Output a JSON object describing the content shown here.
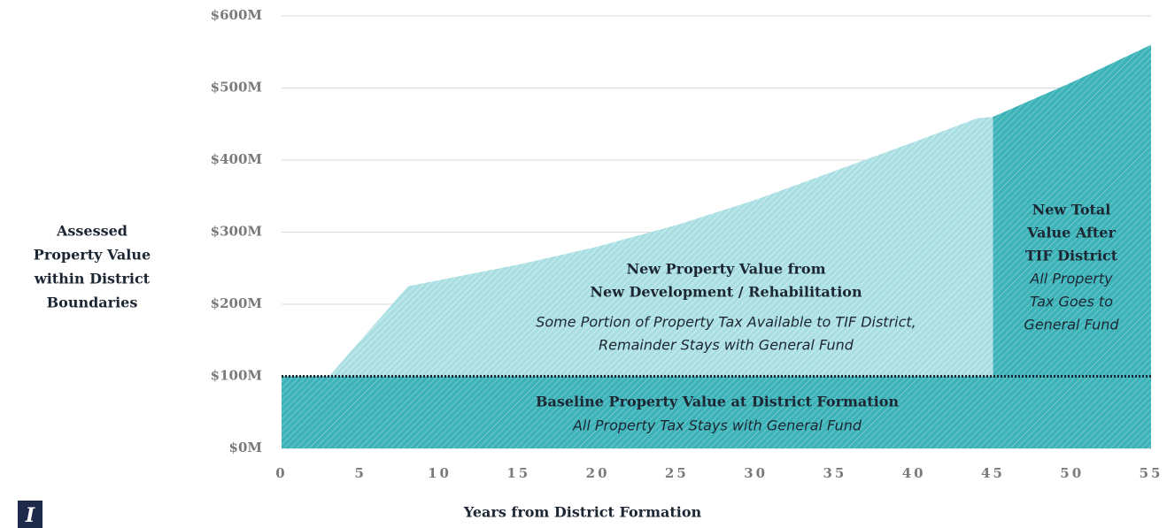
{
  "chart_data": {
    "type": "area",
    "ylabel": [
      "Assessed",
      "Property Value",
      "within District",
      "Boundaries"
    ],
    "xlabel": "Years from District Formation",
    "xlim": [
      0,
      55
    ],
    "xticks": [
      0,
      5,
      10,
      15,
      20,
      25,
      30,
      35,
      40,
      45,
      50,
      55
    ],
    "ylim": [
      0,
      600
    ],
    "yticks": [
      {
        "value": 0,
        "label": "$0M"
      },
      {
        "value": 100,
        "label": "$100M"
      },
      {
        "value": 200,
        "label": "$200M"
      },
      {
        "value": 300,
        "label": "$300M"
      },
      {
        "value": 400,
        "label": "$400M"
      },
      {
        "value": 500,
        "label": "$500M"
      },
      {
        "value": 600,
        "label": "$600M"
      }
    ],
    "grid": true,
    "series": [
      {
        "name": "Baseline Property Value at District Formation",
        "color": "#3bb3b8",
        "x": [
          0,
          55
        ],
        "values": [
          100,
          100
        ],
        "note_lines": [
          "All Property Tax Stays with General Fund"
        ]
      },
      {
        "name": "New Property Value from New Development / Rehabilitation",
        "color": "#a9dfe2",
        "x": [
          3,
          8,
          15,
          20,
          25,
          30,
          35,
          40,
          44,
          45
        ],
        "values": [
          100,
          225,
          255,
          280,
          310,
          345,
          385,
          425,
          458,
          460
        ],
        "title_lines": [
          "New Property Value from",
          "New Development / Rehabilitation"
        ],
        "note_lines": [
          "Some Portion of Property Tax Available to TIF District,",
          "Remainder Stays with General Fund"
        ]
      },
      {
        "name": "New Total Value After TIF District",
        "color": "#3bb3b8",
        "x": [
          45,
          50,
          55
        ],
        "values": [
          460,
          508,
          560
        ],
        "title_lines": [
          "New Total",
          "Value After",
          "TIF District"
        ],
        "note_lines": [
          "All Property",
          "Tax Goes to",
          "General Fund"
        ]
      }
    ]
  }
}
